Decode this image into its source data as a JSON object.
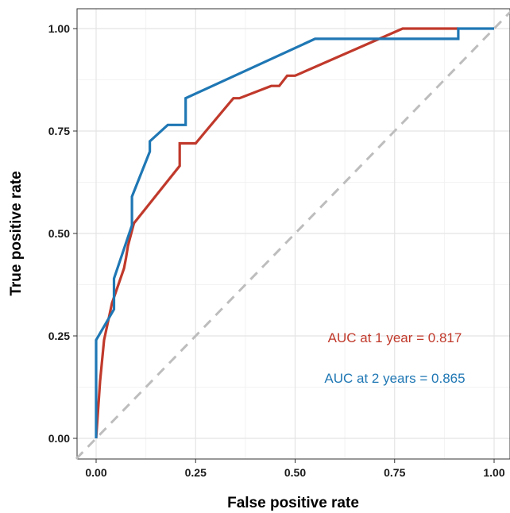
{
  "chart_data": {
    "type": "line",
    "title": "",
    "xlabel": "False positive rate",
    "ylabel": "True positive rate",
    "xlim": [
      -0.05,
      1.05
    ],
    "ylim": [
      -0.05,
      1.05
    ],
    "x_ticks": [
      0.0,
      0.25,
      0.5,
      0.75,
      1.0
    ],
    "x_tick_labels": [
      "0.00",
      "0.25",
      "0.50",
      "0.75",
      "1.00"
    ],
    "y_ticks": [
      0.0,
      0.25,
      0.5,
      0.75,
      1.0
    ],
    "y_tick_labels": [
      "0.00",
      "0.25",
      "0.50",
      "0.75",
      "1.00"
    ],
    "grid": true,
    "reference_line": {
      "x": [
        0,
        1
      ],
      "y": [
        0,
        1
      ],
      "color": "#bdbdbd",
      "style": "dashed"
    },
    "series": [
      {
        "color": "#c0392b",
        "x": [
          0.0,
          0.01,
          0.02,
          0.04,
          0.07,
          0.075,
          0.08,
          0.095,
          0.21,
          0.21,
          0.25,
          0.345,
          0.36,
          0.44,
          0.46,
          0.48,
          0.5,
          0.77,
          0.91
        ],
        "y": [
          0.0,
          0.14,
          0.24,
          0.33,
          0.415,
          0.44,
          0.47,
          0.525,
          0.665,
          0.72,
          0.72,
          0.83,
          0.83,
          0.86,
          0.86,
          0.885,
          0.885,
          1.0,
          1.0
        ]
      },
      {
        "color": "#1f77b4",
        "x": [
          0.0,
          0.0,
          0.045,
          0.045,
          0.09,
          0.09,
          0.135,
          0.135,
          0.18,
          0.225,
          0.225,
          0.55,
          0.91,
          0.91,
          1.0
        ],
        "y": [
          0.0,
          0.24,
          0.315,
          0.39,
          0.52,
          0.59,
          0.7,
          0.725,
          0.765,
          0.765,
          0.83,
          0.975,
          0.975,
          1.0,
          1.0
        ]
      }
    ],
    "annotations": [
      {
        "text": "AUC at 1 year = 0.817",
        "color": "#c0392b"
      },
      {
        "text": "AUC at 2 years = 0.865",
        "color": "#1f77b4"
      }
    ]
  }
}
